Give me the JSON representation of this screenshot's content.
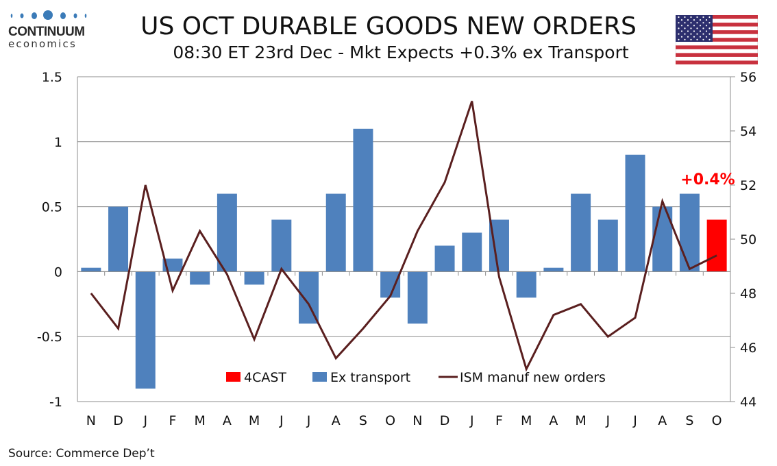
{
  "logo": {
    "brand": "CONTINUUM",
    "sub": "economics"
  },
  "header": {
    "title": "US OCT DURABLE GOODS NEW ORDERS",
    "subtitle": "08:30 ET 23rd Dec - Mkt Expects +0.3% ex Transport"
  },
  "source": "Source: Commerce Dep’t",
  "colors": {
    "bar": "#4f81bd",
    "forecast": "#ff0000",
    "line": "#5a1f1f",
    "annotation": "#ff0000"
  },
  "chart_data": {
    "type": "bar+line",
    "title": "US OCT DURABLE GOODS NEW ORDERS",
    "categories": [
      "N",
      "D",
      "J",
      "F",
      "M",
      "A",
      "M",
      "J",
      "J",
      "A",
      "S",
      "O",
      "N",
      "D",
      "J",
      "F",
      "M",
      "A",
      "M",
      "J",
      "J",
      "A",
      "S",
      "O"
    ],
    "series": [
      {
        "name": "Ex transport",
        "type": "bar",
        "axis": "left",
        "values": [
          0.03,
          0.5,
          -0.9,
          0.1,
          -0.1,
          0.6,
          -0.1,
          0.4,
          -0.4,
          0.6,
          1.1,
          -0.2,
          -0.4,
          0.2,
          0.3,
          0.4,
          -0.2,
          0.03,
          0.6,
          0.4,
          0.9,
          0.5,
          0.6,
          null
        ]
      },
      {
        "name": "4CAST",
        "type": "bar",
        "axis": "left",
        "values": [
          null,
          null,
          null,
          null,
          null,
          null,
          null,
          null,
          null,
          null,
          null,
          null,
          null,
          null,
          null,
          null,
          null,
          null,
          null,
          null,
          null,
          null,
          null,
          0.4
        ]
      },
      {
        "name": "ISM manuf new orders",
        "type": "line",
        "axis": "right",
        "values": [
          48.0,
          46.7,
          52.0,
          48.1,
          50.3,
          48.7,
          46.3,
          48.9,
          47.6,
          45.6,
          46.7,
          47.9,
          50.3,
          52.1,
          55.1,
          48.6,
          45.2,
          47.2,
          47.6,
          46.4,
          47.1,
          51.4,
          48.9,
          49.4
        ]
      }
    ],
    "left_axis": {
      "ylim": [
        -1,
        1.5
      ],
      "ticks": [
        "1.5",
        "1",
        "0.5",
        "0",
        "-0.5",
        "-1"
      ],
      "tick_values": [
        1.5,
        1,
        0.5,
        0,
        -0.5,
        -1
      ]
    },
    "right_axis": {
      "ylim": [
        44,
        56
      ],
      "ticks": [
        "56",
        "54",
        "52",
        "50",
        "48",
        "46",
        "44"
      ],
      "tick_values": [
        56,
        54,
        52,
        50,
        48,
        46,
        44
      ]
    },
    "annotation": "+0.4%",
    "legend": {
      "placement": "bottom-center",
      "entries": [
        "4CAST",
        "Ex transport",
        "ISM manuf new orders"
      ]
    },
    "grid": true
  }
}
